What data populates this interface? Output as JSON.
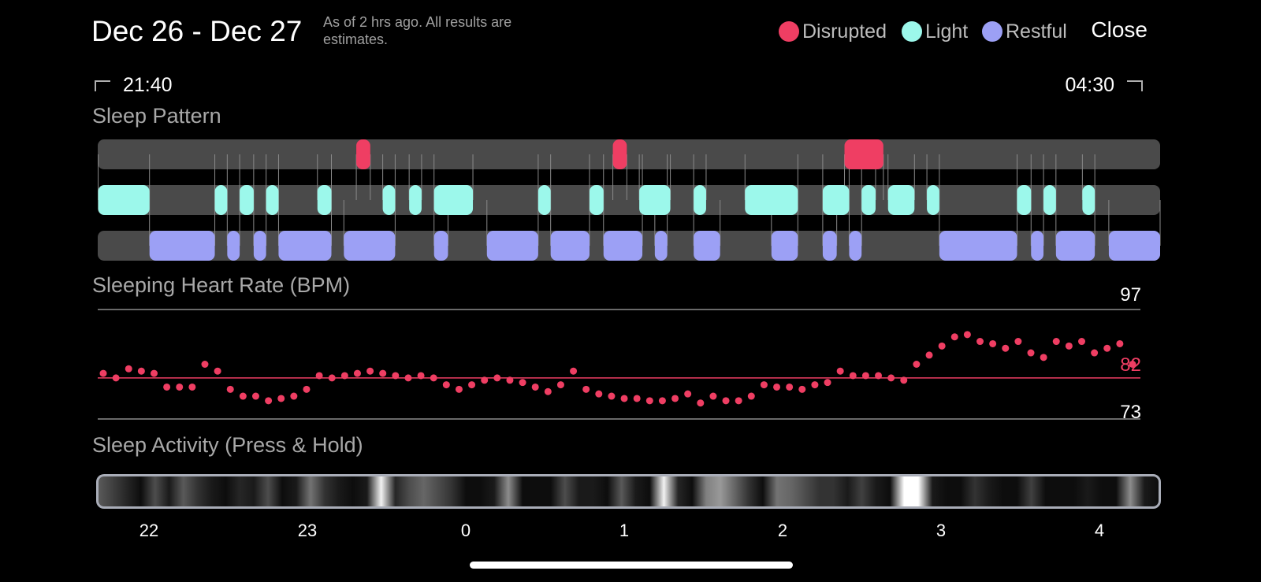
{
  "header": {
    "date_range": "Dec 26 - Dec 27",
    "as_of": "As of 2 hrs ago. All results are estimates.",
    "legend": [
      {
        "label": "Disrupted",
        "color": "#EF3E63"
      },
      {
        "label": "Light",
        "color": "#9CF8EB"
      },
      {
        "label": "Restful",
        "color": "#9CA0F5"
      }
    ],
    "close_label": "Close"
  },
  "time_range": {
    "start": "21:40",
    "end": "04:30"
  },
  "sleep_pattern": {
    "title": "Sleep Pattern",
    "start_hour": 21.667,
    "end_hour": 28.5,
    "track_color": "#4a4a4a",
    "segments": {
      "disrupted": [
        [
          23.33,
          23.42
        ],
        [
          24.98,
          25.07
        ],
        [
          26.47,
          26.72
        ]
      ],
      "light": [
        [
          21.67,
          22.0
        ],
        [
          22.42,
          22.5
        ],
        [
          22.58,
          22.67
        ],
        [
          22.75,
          22.83
        ],
        [
          23.08,
          23.17
        ],
        [
          23.5,
          23.58
        ],
        [
          23.67,
          23.75
        ],
        [
          23.83,
          24.08
        ],
        [
          25.5,
          25.58
        ],
        [
          24.5,
          24.58
        ],
        [
          25.17,
          25.33
        ],
        [
          25.83,
          26.17
        ],
        [
          26.33,
          26.5
        ],
        [
          26.58,
          26.67
        ],
        [
          26.75,
          26.92
        ],
        [
          27.0,
          27.08
        ],
        [
          27.58,
          27.67
        ],
        [
          27.75,
          27.83
        ],
        [
          28.0,
          28.08
        ],
        [
          24.83,
          24.92
        ],
        [
          25.15,
          25.35
        ]
      ],
      "restful": [
        [
          22.0,
          22.42
        ],
        [
          22.5,
          22.58
        ],
        [
          22.67,
          22.75
        ],
        [
          22.83,
          23.17
        ],
        [
          23.25,
          23.58
        ],
        [
          23.83,
          23.92
        ],
        [
          24.17,
          24.5
        ],
        [
          24.58,
          24.83
        ],
        [
          24.92,
          25.17
        ],
        [
          25.25,
          25.33
        ],
        [
          25.5,
          25.67
        ],
        [
          26.0,
          26.17
        ],
        [
          26.33,
          26.42
        ],
        [
          26.5,
          26.58
        ],
        [
          27.08,
          27.58
        ],
        [
          27.67,
          27.75
        ],
        [
          27.83,
          28.08
        ],
        [
          28.17,
          28.5
        ]
      ]
    }
  },
  "heart_rate": {
    "title": "Sleeping Heart Rate (BPM)",
    "max_label": "97",
    "avg_label": "82",
    "min_label": "73",
    "dot_color": "#EF3E63",
    "chart_data": {
      "type": "scatter",
      "ylim": [
        73,
        97
      ],
      "average": 82,
      "x_start_hour": 21.667,
      "x_end_hour": 28.5,
      "y": [
        83,
        82,
        84,
        83.5,
        83,
        80,
        80,
        80,
        85,
        83.5,
        79.5,
        78,
        78,
        77,
        77.5,
        78,
        79.5,
        82.5,
        82,
        82.5,
        83,
        83.5,
        83,
        82.5,
        82,
        82.5,
        82,
        80.5,
        79.5,
        80.5,
        81.5,
        82,
        81.5,
        81,
        80,
        79,
        80.5,
        83.5,
        79.5,
        78.5,
        78,
        77.5,
        77.5,
        77,
        77,
        77.5,
        78.5,
        76.5,
        78,
        77,
        77,
        78,
        80.5,
        80,
        80,
        79.5,
        80.5,
        81,
        83.5,
        82.5,
        82.5,
        82.5,
        82,
        81.5,
        85,
        87,
        89,
        91,
        91.5,
        90,
        89.5,
        88.5,
        90,
        87.5,
        86.5,
        90,
        89,
        90,
        87.5,
        88.5,
        89.5,
        85
      ]
    }
  },
  "sleep_activity": {
    "title": "Sleep Activity (Press & Hold)",
    "intensity": [
      0.35,
      0.25,
      0.15,
      0.05,
      0.3,
      0.1,
      0.35,
      0.2,
      0.1,
      0.05,
      0.15,
      0.1,
      0.3,
      0.05,
      0.1,
      0.45,
      0.2,
      0.1,
      0.05,
      0.1,
      0.95,
      0.15,
      0.3,
      0.4,
      0.3,
      0.2,
      0.05,
      0.05,
      0.1,
      0.55,
      0.05,
      0.05,
      0.05,
      0.3,
      0.1,
      0.1,
      0.05,
      0.35,
      0.1,
      0.05,
      0.95,
      0.15,
      0.05,
      0.5,
      0.6,
      0.4,
      0.2,
      0.05,
      0.45,
      0.4,
      0.3,
      0.2,
      0.2,
      0.1,
      0.25,
      0.1,
      0.05,
      1.0,
      1.0,
      0.1,
      0.05,
      0.05,
      0.2,
      0.1,
      0.05,
      0.05,
      0.25,
      0.05,
      0.05,
      0.05,
      0.1,
      0.05,
      0.05,
      0.55,
      0.1,
      0.05
    ],
    "ticks": [
      "22",
      "23",
      "0",
      "1",
      "2",
      "3",
      "4"
    ]
  },
  "colors": {
    "disrupted": "#EF3E63",
    "light": "#9CF8EB",
    "restful": "#9CA0F5",
    "background": "#000000"
  }
}
